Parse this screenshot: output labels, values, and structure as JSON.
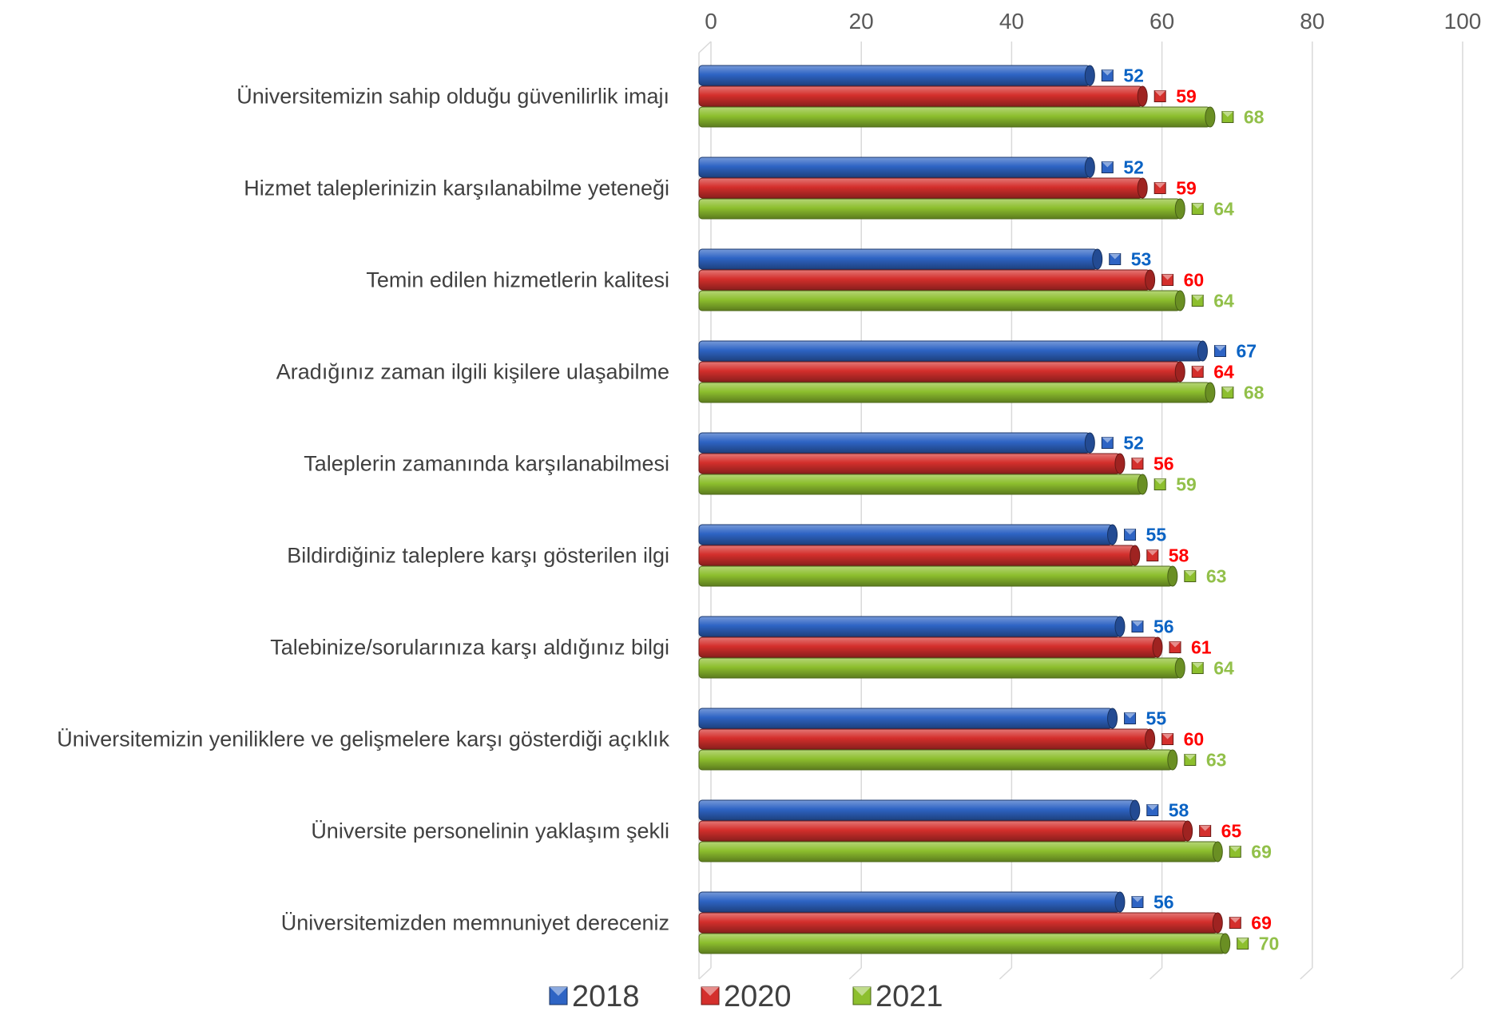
{
  "chart_data": {
    "type": "bar",
    "orientation": "horizontal",
    "categories": [
      "Üniversitemizin sahip olduğu güvenilirlik imajı",
      "Hizmet taleplerinizin karşılanabilme yeteneği",
      "Temin edilen hizmetlerin kalitesi",
      "Aradığınız zaman ilgili kişilere ulaşabilme",
      "Taleplerin zamanında karşılanabilmesi",
      "Bildirdiğiniz taleplere karşı gösterilen ilgi",
      "Talebinize/sorularınıza karşı aldığınız bilgi",
      "Üniversitemizin yeniliklere ve gelişmelere karşı gösterdiği açıklık",
      "Üniversite personelinin yaklaşım şekli",
      "Üniversitemizden memnuniyet dereceniz"
    ],
    "series": [
      {
        "name": "2018",
        "color": "#2E64C4",
        "label_color": "#0B63C4",
        "values": [
          52,
          52,
          53,
          67,
          52,
          55,
          56,
          55,
          58,
          56
        ]
      },
      {
        "name": "2020",
        "color": "#D42F2C",
        "label_color": "#FF0000",
        "values": [
          59,
          59,
          60,
          64,
          56,
          58,
          61,
          60,
          65,
          69
        ]
      },
      {
        "name": "2021",
        "color": "#8DBF2E",
        "label_color": "#92C04A",
        "values": [
          68,
          64,
          64,
          68,
          59,
          63,
          64,
          63,
          69,
          70
        ]
      }
    ],
    "xlim": [
      0,
      100
    ],
    "x_ticks": [
      "0",
      "20",
      "40",
      "60",
      "80",
      "100"
    ],
    "x_axis_position": "top",
    "grid": true,
    "legend_position": "bottom",
    "title": "",
    "xlabel": "",
    "ylabel": ""
  }
}
